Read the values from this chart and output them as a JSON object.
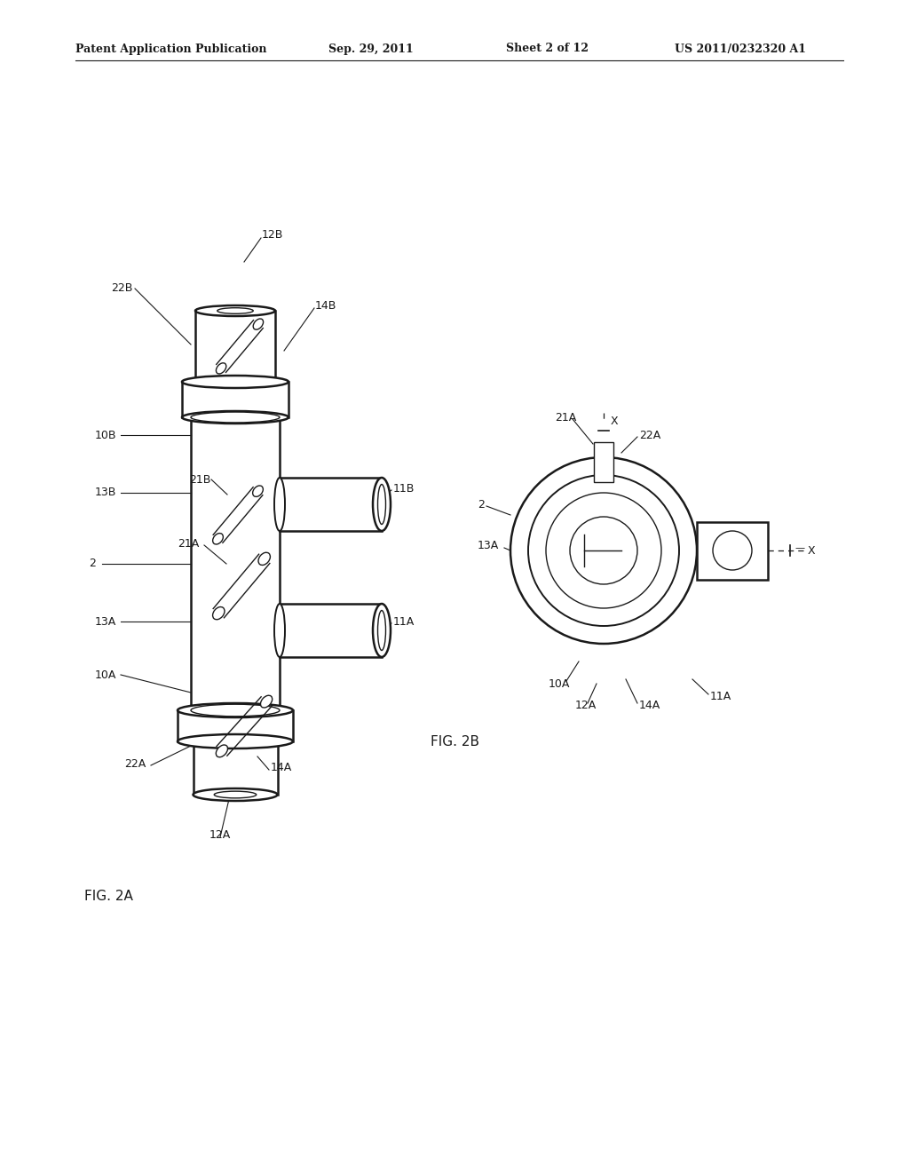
{
  "bg_color": "#ffffff",
  "line_color": "#1a1a1a",
  "header_text": "Patent Application Publication",
  "header_date": "Sep. 29, 2011",
  "header_sheet": "Sheet 2 of 12",
  "header_patent": "US 2011/0232320 A1",
  "fig_2a_label": "FIG. 2A",
  "fig_2b_label": "FIG. 2B"
}
